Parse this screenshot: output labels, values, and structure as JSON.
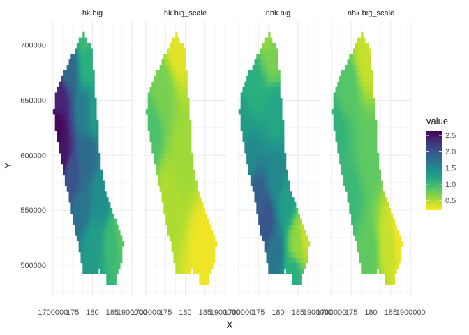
{
  "chart_data": {
    "type": "heatmap",
    "title": "",
    "xlabel": "X",
    "ylabel": "Y",
    "facets": [
      "hk.big",
      "hk.big_scale",
      "nhk.big",
      "nhk.big_scale"
    ],
    "xlim": [
      1695000,
      1905000
    ],
    "ylim": [
      472000,
      722000
    ],
    "x_ticks": [
      1700000,
      1750000,
      1800000,
      1850000,
      1900000
    ],
    "x_tick_labels": [
      "1700000",
      "175",
      "180",
      "185",
      "1900000"
    ],
    "y_ticks": [
      500000,
      550000,
      600000,
      650000,
      700000
    ],
    "y_tick_labels": [
      "500000",
      "550000",
      "600000",
      "650000",
      "700000"
    ],
    "grid": true,
    "legend": {
      "title": "value",
      "position": "right",
      "range": [
        0.2,
        2.65
      ],
      "ticks": [
        0.5,
        1.0,
        1.5,
        2.0,
        2.5
      ],
      "tick_labels": [
        "0.5",
        "1.0",
        "1.5",
        "2.0",
        "2.5"
      ],
      "palette": "viridis"
    },
    "region_outline": [
      [
        1777000,
        713000
      ],
      [
        1798000,
        695000
      ],
      [
        1805000,
        668000
      ],
      [
        1808000,
        648000
      ],
      [
        1813000,
        630000
      ],
      [
        1817000,
        605000
      ],
      [
        1825000,
        582000
      ],
      [
        1835000,
        565000
      ],
      [
        1852000,
        548000
      ],
      [
        1872000,
        530000
      ],
      [
        1878000,
        522000
      ],
      [
        1875000,
        505000
      ],
      [
        1862000,
        492000
      ],
      [
        1855000,
        480000
      ],
      [
        1835000,
        480000
      ],
      [
        1833000,
        490000
      ],
      [
        1818000,
        495000
      ],
      [
        1798000,
        490000
      ],
      [
        1778000,
        490000
      ],
      [
        1770000,
        510000
      ],
      [
        1750000,
        540000
      ],
      [
        1735000,
        570000
      ],
      [
        1710000,
        615000
      ],
      [
        1702000,
        640000
      ],
      [
        1705000,
        655000
      ],
      [
        1722000,
        670000
      ],
      [
        1745000,
        690000
      ],
      [
        1762000,
        700000
      ]
    ],
    "series": [
      {
        "name": "hk.big",
        "nodes": [
          [
            1712000,
            625000,
            2.6
          ],
          [
            1725000,
            600000,
            2.5
          ],
          [
            1718000,
            650000,
            2.4
          ],
          [
            1745000,
            580000,
            2.0
          ],
          [
            1770000,
            550000,
            1.7
          ],
          [
            1785000,
            600000,
            1.8
          ],
          [
            1780000,
            640000,
            1.6
          ],
          [
            1790000,
            680000,
            1.1
          ],
          [
            1780000,
            710000,
            1.0
          ],
          [
            1800000,
            520000,
            1.3
          ],
          [
            1850000,
            520000,
            1.0
          ],
          [
            1870000,
            525000,
            0.85
          ],
          [
            1820000,
            560000,
            1.45
          ],
          [
            1740000,
            680000,
            1.8
          ],
          [
            1800000,
            640000,
            1.3
          ]
        ]
      },
      {
        "name": "hk.big_scale",
        "nodes": [
          [
            1712000,
            625000,
            0.9
          ],
          [
            1780000,
            700000,
            0.3
          ],
          [
            1760000,
            560000,
            0.5
          ],
          [
            1850000,
            520000,
            0.25
          ],
          [
            1800000,
            600000,
            0.55
          ],
          [
            1740000,
            660000,
            0.7
          ]
        ]
      },
      {
        "name": "nhk.big",
        "nodes": [
          [
            1712000,
            625000,
            1.3
          ],
          [
            1725000,
            600000,
            1.5
          ],
          [
            1745000,
            560000,
            1.9
          ],
          [
            1770000,
            540000,
            2.0
          ],
          [
            1790000,
            510000,
            1.7
          ],
          [
            1800000,
            580000,
            1.5
          ],
          [
            1795000,
            640000,
            1.2
          ],
          [
            1790000,
            690000,
            0.7
          ],
          [
            1780000,
            712000,
            0.6
          ],
          [
            1850000,
            520000,
            0.6
          ],
          [
            1870000,
            525000,
            0.4
          ],
          [
            1820000,
            560000,
            1.3
          ],
          [
            1740000,
            660000,
            1.1
          ],
          [
            1840000,
            490000,
            1.1
          ]
        ]
      },
      {
        "name": "nhk.big_scale",
        "nodes": [
          [
            1712000,
            625000,
            1.05
          ],
          [
            1745000,
            560000,
            1.0
          ],
          [
            1790000,
            510000,
            0.8
          ],
          [
            1790000,
            690000,
            0.4
          ],
          [
            1850000,
            520000,
            0.4
          ],
          [
            1870000,
            525000,
            0.25
          ],
          [
            1800000,
            600000,
            0.8
          ],
          [
            1740000,
            660000,
            0.85
          ]
        ]
      }
    ]
  }
}
